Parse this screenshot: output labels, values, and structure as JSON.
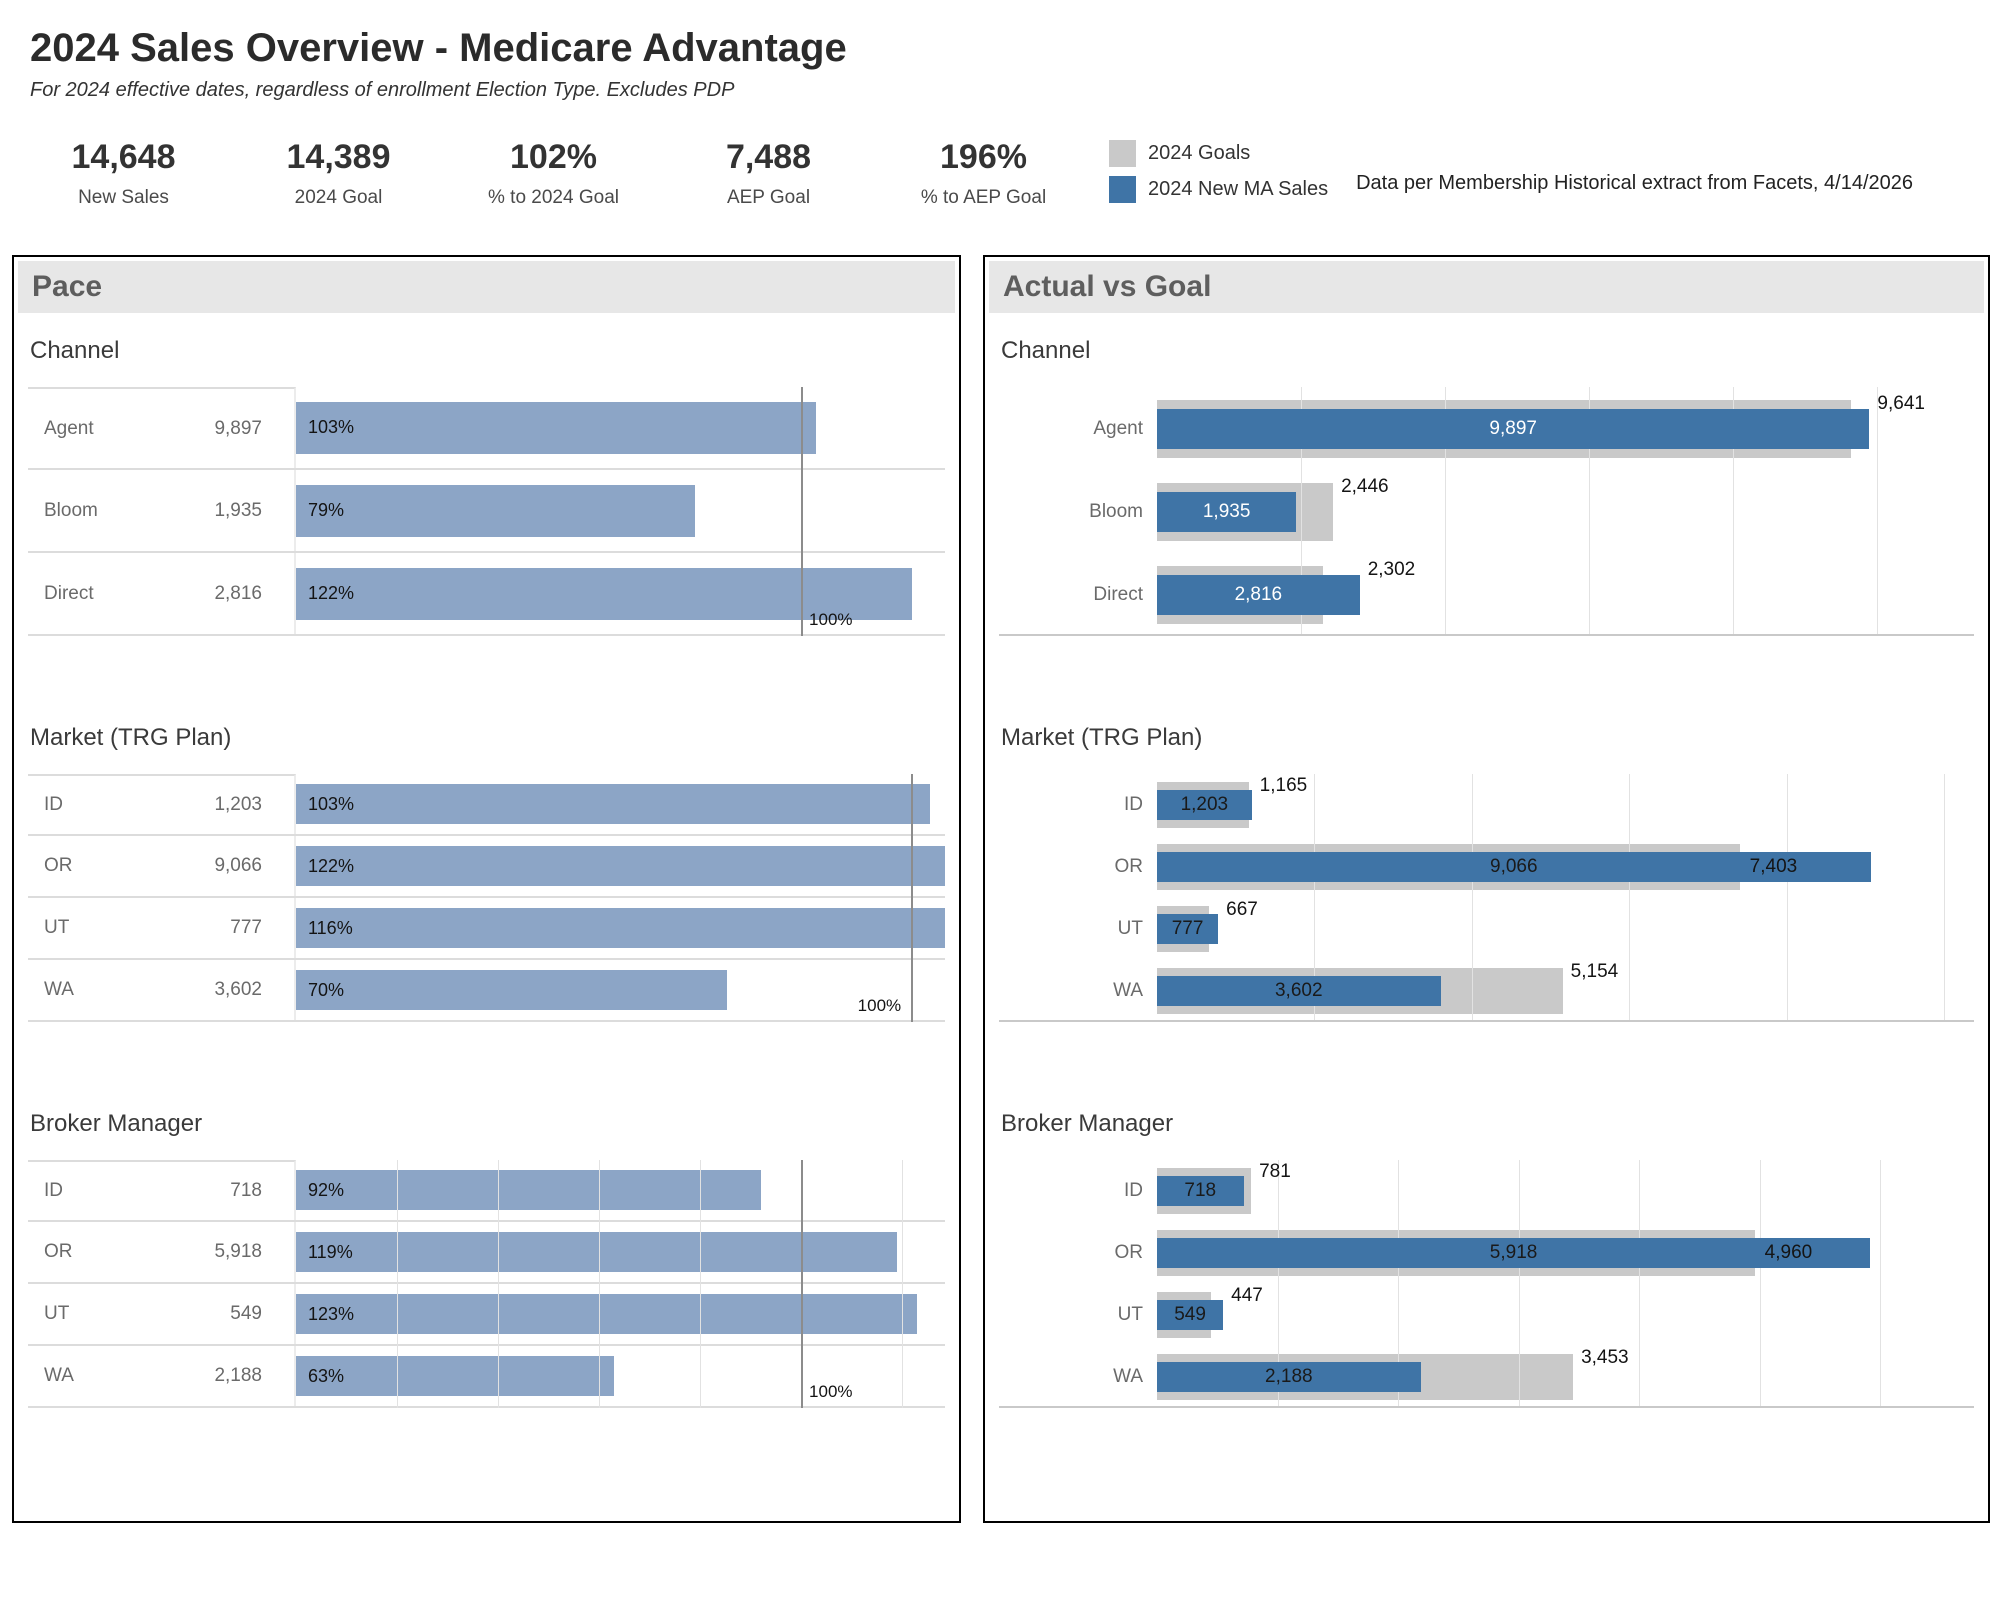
{
  "header": {
    "title": "2024 Sales Overview - Medicare Advantage",
    "subtitle": "For 2024 effective dates, regardless of enrollment Election Type.  Excludes PDP"
  },
  "kpis": [
    {
      "value": "14,648",
      "label": "New Sales"
    },
    {
      "value": "14,389",
      "label": "2024 Goal"
    },
    {
      "value": "102%",
      "label": "% to 2024 Goal"
    },
    {
      "value": "7,488",
      "label": "AEP Goal"
    },
    {
      "value": "196%",
      "label": "% to AEP Goal"
    }
  ],
  "legend": [
    {
      "label": "2024 Goals",
      "color": "#C9C9C9"
    },
    {
      "label": "2024 New MA Sales",
      "color": "#3F74A6"
    }
  ],
  "note": "Data per Membership Historical extract from Facets, 4/14/2026",
  "colors": {
    "pace_bar": "#8CA5C6",
    "actual_bar": "#3F74A6",
    "goal_bar": "#C9C9C9",
    "ref_line": "#8C8C8C"
  },
  "panels": {
    "pace": {
      "title": "Pace"
    },
    "actual_vs_goal": {
      "title": "Actual vs Goal"
    }
  },
  "chart_data": [
    {
      "id": "pace-channel",
      "panel": "pace",
      "type": "bar",
      "title": "Channel",
      "categories": [
        "Agent",
        "Bloom",
        "Direct"
      ],
      "values": [
        9897,
        1935,
        2816
      ],
      "value_labels": [
        "9,897",
        "1,935",
        "2,816"
      ],
      "pct_to_goal": [
        103,
        79,
        122
      ],
      "pct_labels": [
        "103%",
        "79%",
        "122%"
      ],
      "ref_line": {
        "value": 100,
        "label": "100%",
        "side": "right"
      },
      "xlim": [
        0,
        128.5
      ],
      "grid_step_pct": null
    },
    {
      "id": "pace-market",
      "panel": "pace",
      "type": "bar",
      "title": "Market (TRG Plan)",
      "categories": [
        "ID",
        "OR",
        "UT",
        "WA"
      ],
      "values": [
        1203,
        9066,
        777,
        3602
      ],
      "value_labels": [
        "1,203",
        "9,066",
        "777",
        "3,602"
      ],
      "pct_to_goal": [
        103,
        122,
        116,
        70
      ],
      "pct_labels": [
        "103%",
        "122%",
        "116%",
        "70%"
      ],
      "ref_line": {
        "value": 100,
        "label": "100%",
        "side": "left"
      },
      "xlim": [
        0,
        105.5
      ],
      "grid_step_pct": null
    },
    {
      "id": "pace-broker",
      "panel": "pace",
      "type": "bar",
      "title": "Broker Manager",
      "categories": [
        "ID",
        "OR",
        "UT",
        "WA"
      ],
      "values": [
        718,
        5918,
        549,
        2188
      ],
      "value_labels": [
        "718",
        "5,918",
        "549",
        "2,188"
      ],
      "pct_to_goal": [
        92,
        119,
        123,
        63
      ],
      "pct_labels": [
        "92%",
        "119%",
        "123%",
        "63%"
      ],
      "ref_line": {
        "value": 100,
        "label": "100%",
        "side": "right"
      },
      "xlim": [
        0,
        128.5
      ],
      "grid_step_pct": 20
    },
    {
      "id": "avg-channel",
      "panel": "actual_vs_goal",
      "type": "bar",
      "title": "Channel",
      "categories": [
        "Agent",
        "Bloom",
        "Direct"
      ],
      "series": [
        {
          "name": "2024 New MA Sales",
          "values": [
            9897,
            1935,
            2816
          ],
          "labels": [
            "9,897",
            "1,935",
            "2,816"
          ]
        },
        {
          "name": "2024 Goals",
          "values": [
            9641,
            2446,
            2302
          ],
          "labels": [
            "9,641",
            "2,446",
            "2,302"
          ]
        }
      ],
      "xlim": [
        0,
        11350
      ],
      "grid_step": 2000,
      "inside_label_color": "#FFFFFF"
    },
    {
      "id": "avg-market",
      "panel": "actual_vs_goal",
      "type": "bar",
      "title": "Market (TRG Plan)",
      "categories": [
        "ID",
        "OR",
        "UT",
        "WA"
      ],
      "series": [
        {
          "name": "2024 New MA Sales",
          "values": [
            1203,
            9066,
            777,
            3602
          ],
          "labels": [
            "1,203",
            "9,066",
            "777",
            "3,602"
          ]
        },
        {
          "name": "2024 Goals",
          "values": [
            1165,
            7403,
            667,
            5154
          ],
          "labels": [
            "1,165",
            "7,403",
            "667",
            "5,154"
          ]
        }
      ],
      "xlim": [
        0,
        10380
      ],
      "grid_step": 2000,
      "inside_label_color": "#1A1A1A"
    },
    {
      "id": "avg-broker",
      "panel": "actual_vs_goal",
      "type": "bar",
      "title": "Broker Manager",
      "categories": [
        "ID",
        "OR",
        "UT",
        "WA"
      ],
      "series": [
        {
          "name": "2024 New MA Sales",
          "values": [
            718,
            5918,
            549,
            2188
          ],
          "labels": [
            "718",
            "5,918",
            "549",
            "2,188"
          ]
        },
        {
          "name": "2024 Goals",
          "values": [
            781,
            4960,
            447,
            3453
          ],
          "labels": [
            "781",
            "4,960",
            "447",
            "3,453"
          ]
        }
      ],
      "xlim": [
        0,
        6780
      ],
      "grid_step": 1000,
      "inside_label_color": "#1A1A1A"
    }
  ]
}
